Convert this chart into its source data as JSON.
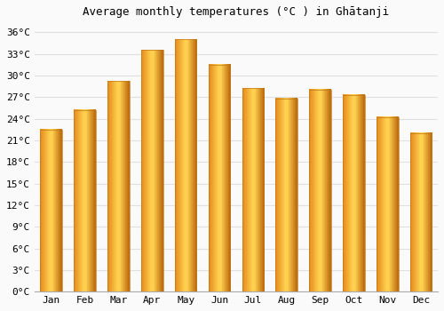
{
  "title": "Average monthly temperatures (°C ) in Ghātanji",
  "months": [
    "Jan",
    "Feb",
    "Mar",
    "Apr",
    "May",
    "Jun",
    "Jul",
    "Aug",
    "Sep",
    "Oct",
    "Nov",
    "Dec"
  ],
  "temperatures": [
    22.5,
    25.2,
    29.2,
    33.5,
    35.0,
    31.5,
    28.2,
    26.8,
    28.0,
    27.3,
    24.2,
    22.0
  ],
  "bar_color_left": "#E89020",
  "bar_color_mid": "#FFD050",
  "bar_color_right": "#C07010",
  "background_color": "#FAFAFA",
  "grid_color": "#E0E0E0",
  "title_fontsize": 9,
  "tick_fontsize": 8,
  "ylim": [
    0,
    37
  ],
  "yticks": [
    0,
    3,
    6,
    9,
    12,
    15,
    18,
    21,
    24,
    27,
    30,
    33,
    36
  ]
}
